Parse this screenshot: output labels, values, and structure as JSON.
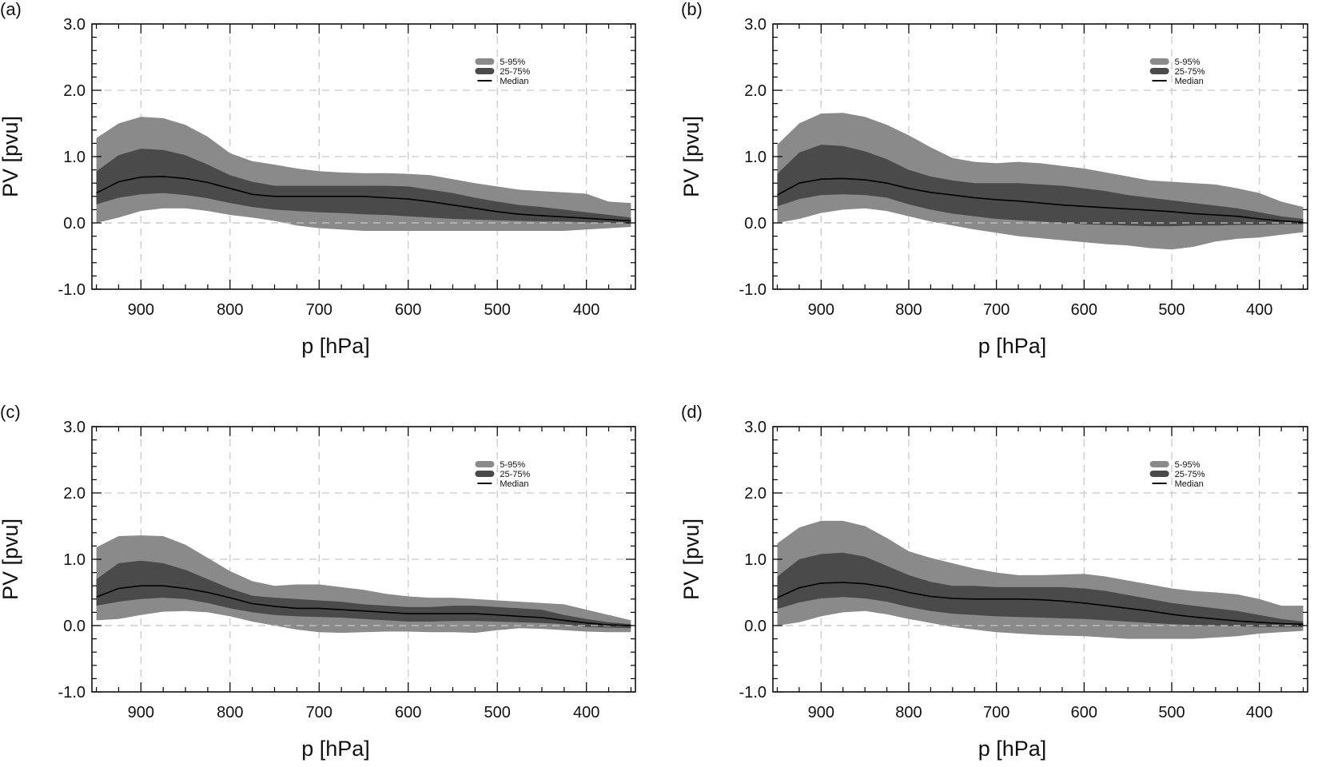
{
  "figure": {
    "axis_x_label": "p [hPa]",
    "axis_y_label": "PV [pvu]",
    "legend": {
      "outer_label": "5-95%",
      "inner_label": "25-75%",
      "median_label": "Median"
    },
    "colors": {
      "band_outer": "#8a8a8a",
      "band_inner": "#4a4a4a",
      "median": "#000000",
      "grid": "#c8c8c8",
      "frame": "#000000"
    }
  },
  "chart_data": [
    {
      "panel_label": "(a)",
      "type": "area",
      "xlim": [
        955,
        345
      ],
      "ylim": [
        -1.0,
        3.0
      ],
      "x_reversed": true,
      "x_ticks": [
        900,
        800,
        700,
        600,
        500,
        400
      ],
      "x_tick_labels": [
        "900",
        "800",
        "700",
        "600",
        "500",
        "400"
      ],
      "y_ticks": [
        -1.0,
        0.0,
        1.0,
        2.0,
        3.0
      ],
      "y_tick_labels": [
        "-1.0",
        "0.0",
        "1.0",
        "2.0",
        "3.0"
      ],
      "grid": true,
      "legend_position": "top-right",
      "x": [
        950,
        925,
        900,
        875,
        850,
        825,
        800,
        775,
        750,
        725,
        700,
        675,
        650,
        625,
        600,
        575,
        550,
        525,
        500,
        475,
        450,
        425,
        400,
        375,
        350
      ],
      "series": [
        {
          "role": "outer_band",
          "lower": [
            0.0,
            0.08,
            0.18,
            0.22,
            0.22,
            0.18,
            0.12,
            0.08,
            0.03,
            -0.04,
            -0.08,
            -0.1,
            -0.12,
            -0.12,
            -0.12,
            -0.12,
            -0.12,
            -0.12,
            -0.12,
            -0.12,
            -0.12,
            -0.12,
            -0.1,
            -0.08,
            -0.06
          ],
          "upper": [
            1.28,
            1.5,
            1.6,
            1.58,
            1.48,
            1.3,
            1.05,
            0.93,
            0.88,
            0.82,
            0.78,
            0.76,
            0.75,
            0.75,
            0.74,
            0.72,
            0.66,
            0.6,
            0.55,
            0.5,
            0.48,
            0.46,
            0.44,
            0.32,
            0.3
          ]
        },
        {
          "role": "inner_band",
          "lower": [
            0.28,
            0.38,
            0.43,
            0.45,
            0.42,
            0.37,
            0.3,
            0.24,
            0.2,
            0.18,
            0.16,
            0.15,
            0.13,
            0.12,
            0.1,
            0.08,
            0.06,
            0.05,
            0.04,
            0.03,
            0.02,
            0.02,
            0.01,
            0.0,
            -0.01
          ]
        },
        {
          "role": "median",
          "values": [
            0.45,
            0.62,
            0.69,
            0.7,
            0.67,
            0.61,
            0.52,
            0.43,
            0.4,
            0.4,
            0.4,
            0.4,
            0.4,
            0.38,
            0.36,
            0.32,
            0.27,
            0.22,
            0.17,
            0.13,
            0.11,
            0.09,
            0.07,
            0.05,
            0.03
          ]
        }
      ],
      "inner_band_upper": [
        0.78,
        1.02,
        1.12,
        1.1,
        1.02,
        0.88,
        0.72,
        0.62,
        0.56,
        0.56,
        0.56,
        0.56,
        0.56,
        0.56,
        0.55,
        0.5,
        0.45,
        0.38,
        0.32,
        0.27,
        0.24,
        0.2,
        0.16,
        0.12,
        0.08
      ]
    },
    {
      "panel_label": "(b)",
      "type": "area",
      "xlim": [
        955,
        345
      ],
      "ylim": [
        -1.0,
        3.0
      ],
      "x_reversed": true,
      "x_ticks": [
        900,
        800,
        700,
        600,
        500,
        400
      ],
      "x_tick_labels": [
        "900",
        "800",
        "700",
        "600",
        "500",
        "400"
      ],
      "y_ticks": [
        -1.0,
        0.0,
        1.0,
        2.0,
        3.0
      ],
      "y_tick_labels": [
        "-1.0",
        "0.0",
        "1.0",
        "2.0",
        "3.0"
      ],
      "grid": true,
      "legend_position": "top-right",
      "x": [
        950,
        925,
        900,
        875,
        850,
        825,
        800,
        775,
        750,
        725,
        700,
        675,
        650,
        625,
        600,
        575,
        550,
        525,
        500,
        475,
        450,
        425,
        400,
        375,
        350
      ],
      "series": [
        {
          "role": "outer_band",
          "lower": [
            0.0,
            0.06,
            0.15,
            0.2,
            0.22,
            0.18,
            0.1,
            0.02,
            -0.04,
            -0.1,
            -0.15,
            -0.2,
            -0.23,
            -0.26,
            -0.29,
            -0.32,
            -0.34,
            -0.38,
            -0.4,
            -0.36,
            -0.28,
            -0.24,
            -0.22,
            -0.18,
            -0.14
          ]
        },
        {
          "role": "inner_band",
          "lower": [
            0.25,
            0.36,
            0.42,
            0.43,
            0.42,
            0.38,
            0.28,
            0.2,
            0.14,
            0.1,
            0.06,
            0.04,
            0.02,
            0.0,
            -0.02,
            -0.03,
            -0.04,
            -0.05,
            -0.05,
            -0.04,
            -0.04,
            -0.03,
            -0.03,
            -0.02,
            -0.02
          ]
        },
        {
          "role": "median",
          "values": [
            0.42,
            0.6,
            0.66,
            0.67,
            0.65,
            0.6,
            0.52,
            0.46,
            0.42,
            0.38,
            0.35,
            0.33,
            0.3,
            0.27,
            0.25,
            0.23,
            0.21,
            0.19,
            0.17,
            0.14,
            0.12,
            0.1,
            0.06,
            0.03,
            0.01
          ]
        }
      ],
      "outer_band_upper": [
        1.18,
        1.5,
        1.65,
        1.66,
        1.6,
        1.48,
        1.32,
        1.14,
        0.98,
        0.92,
        0.9,
        0.92,
        0.9,
        0.86,
        0.82,
        0.76,
        0.7,
        0.64,
        0.62,
        0.6,
        0.58,
        0.52,
        0.45,
        0.32,
        0.24
      ],
      "inner_band_upper": [
        0.74,
        1.06,
        1.18,
        1.16,
        1.08,
        0.96,
        0.8,
        0.7,
        0.64,
        0.6,
        0.6,
        0.6,
        0.58,
        0.56,
        0.52,
        0.48,
        0.42,
        0.38,
        0.34,
        0.3,
        0.26,
        0.22,
        0.16,
        0.1,
        0.06
      ]
    },
    {
      "panel_label": "(c)",
      "type": "area",
      "xlim": [
        955,
        345
      ],
      "ylim": [
        -1.0,
        3.0
      ],
      "x_reversed": true,
      "x_ticks": [
        900,
        800,
        700,
        600,
        500,
        400
      ],
      "x_tick_labels": [
        "900",
        "800",
        "700",
        "600",
        "500",
        "400"
      ],
      "y_ticks": [
        -1.0,
        0.0,
        1.0,
        2.0,
        3.0
      ],
      "y_tick_labels": [
        "-1.0",
        "0.0",
        "1.0",
        "2.0",
        "3.0"
      ],
      "grid": true,
      "legend_position": "top-right",
      "x": [
        950,
        925,
        900,
        875,
        850,
        825,
        800,
        775,
        750,
        725,
        700,
        675,
        650,
        625,
        600,
        575,
        550,
        525,
        500,
        475,
        450,
        425,
        400,
        375,
        350
      ],
      "series": [
        {
          "role": "outer_band",
          "lower": [
            0.08,
            0.1,
            0.16,
            0.21,
            0.22,
            0.2,
            0.14,
            0.06,
            0.0,
            -0.06,
            -0.1,
            -0.11,
            -0.1,
            -0.09,
            -0.09,
            -0.1,
            -0.1,
            -0.11,
            -0.07,
            -0.04,
            -0.05,
            -0.07,
            -0.09,
            -0.1,
            -0.1
          ]
        },
        {
          "role": "inner_band",
          "lower": [
            0.3,
            0.36,
            0.4,
            0.42,
            0.4,
            0.34,
            0.26,
            0.2,
            0.16,
            0.14,
            0.13,
            0.12,
            0.1,
            0.08,
            0.06,
            0.06,
            0.07,
            0.07,
            0.06,
            0.05,
            0.04,
            0.02,
            -0.02,
            -0.03,
            -0.04
          ]
        },
        {
          "role": "median",
          "values": [
            0.43,
            0.56,
            0.6,
            0.6,
            0.56,
            0.5,
            0.42,
            0.33,
            0.29,
            0.26,
            0.26,
            0.24,
            0.22,
            0.2,
            0.18,
            0.18,
            0.18,
            0.18,
            0.16,
            0.14,
            0.12,
            0.08,
            0.04,
            0.01,
            0.0
          ]
        }
      ],
      "outer_band_upper": [
        1.18,
        1.35,
        1.36,
        1.35,
        1.22,
        1.02,
        0.82,
        0.67,
        0.6,
        0.62,
        0.62,
        0.58,
        0.54,
        0.48,
        0.44,
        0.42,
        0.42,
        0.4,
        0.38,
        0.36,
        0.34,
        0.32,
        0.24,
        0.16,
        0.08
      ],
      "inner_band_upper": [
        0.7,
        0.94,
        0.98,
        0.94,
        0.84,
        0.7,
        0.56,
        0.45,
        0.42,
        0.4,
        0.38,
        0.36,
        0.32,
        0.3,
        0.28,
        0.28,
        0.3,
        0.3,
        0.28,
        0.26,
        0.24,
        0.16,
        0.1,
        0.05,
        0.02
      ]
    },
    {
      "panel_label": "(d)",
      "type": "area",
      "xlim": [
        955,
        345
      ],
      "ylim": [
        -1.0,
        3.0
      ],
      "x_reversed": true,
      "x_ticks": [
        900,
        800,
        700,
        600,
        500,
        400
      ],
      "x_tick_labels": [
        "900",
        "800",
        "700",
        "600",
        "500",
        "400"
      ],
      "y_ticks": [
        -1.0,
        0.0,
        1.0,
        2.0,
        3.0
      ],
      "y_tick_labels": [
        "-1.0",
        "0.0",
        "1.0",
        "2.0",
        "3.0"
      ],
      "grid": true,
      "legend_position": "top-right",
      "x": [
        950,
        925,
        900,
        875,
        850,
        825,
        800,
        775,
        750,
        725,
        700,
        675,
        650,
        625,
        600,
        575,
        550,
        525,
        500,
        475,
        450,
        425,
        400,
        375,
        350
      ],
      "series": [
        {
          "role": "outer_band",
          "lower": [
            0.0,
            0.05,
            0.14,
            0.2,
            0.22,
            0.17,
            0.1,
            0.04,
            -0.02,
            -0.06,
            -0.1,
            -0.12,
            -0.14,
            -0.15,
            -0.16,
            -0.18,
            -0.2,
            -0.2,
            -0.2,
            -0.2,
            -0.18,
            -0.16,
            -0.12,
            -0.1,
            -0.08
          ]
        },
        {
          "role": "inner_band",
          "lower": [
            0.25,
            0.35,
            0.41,
            0.43,
            0.41,
            0.36,
            0.28,
            0.22,
            0.18,
            0.16,
            0.14,
            0.13,
            0.12,
            0.11,
            0.1,
            0.08,
            0.06,
            0.04,
            0.02,
            0.01,
            0.0,
            -0.01,
            -0.02,
            -0.02,
            -0.02
          ]
        },
        {
          "role": "median",
          "values": [
            0.42,
            0.57,
            0.64,
            0.65,
            0.63,
            0.58,
            0.5,
            0.44,
            0.41,
            0.4,
            0.4,
            0.4,
            0.39,
            0.37,
            0.34,
            0.3,
            0.26,
            0.22,
            0.17,
            0.13,
            0.1,
            0.07,
            0.05,
            0.03,
            0.02
          ]
        }
      ],
      "outer_band_upper": [
        1.24,
        1.48,
        1.58,
        1.58,
        1.5,
        1.32,
        1.12,
        1.02,
        0.94,
        0.86,
        0.8,
        0.76,
        0.76,
        0.77,
        0.78,
        0.74,
        0.68,
        0.62,
        0.56,
        0.52,
        0.5,
        0.47,
        0.4,
        0.3,
        0.3
      ],
      "inner_band_upper": [
        0.74,
        1.0,
        1.08,
        1.1,
        1.04,
        0.9,
        0.76,
        0.66,
        0.6,
        0.6,
        0.58,
        0.58,
        0.58,
        0.58,
        0.56,
        0.52,
        0.46,
        0.4,
        0.34,
        0.3,
        0.26,
        0.22,
        0.16,
        0.1,
        0.06
      ]
    }
  ]
}
